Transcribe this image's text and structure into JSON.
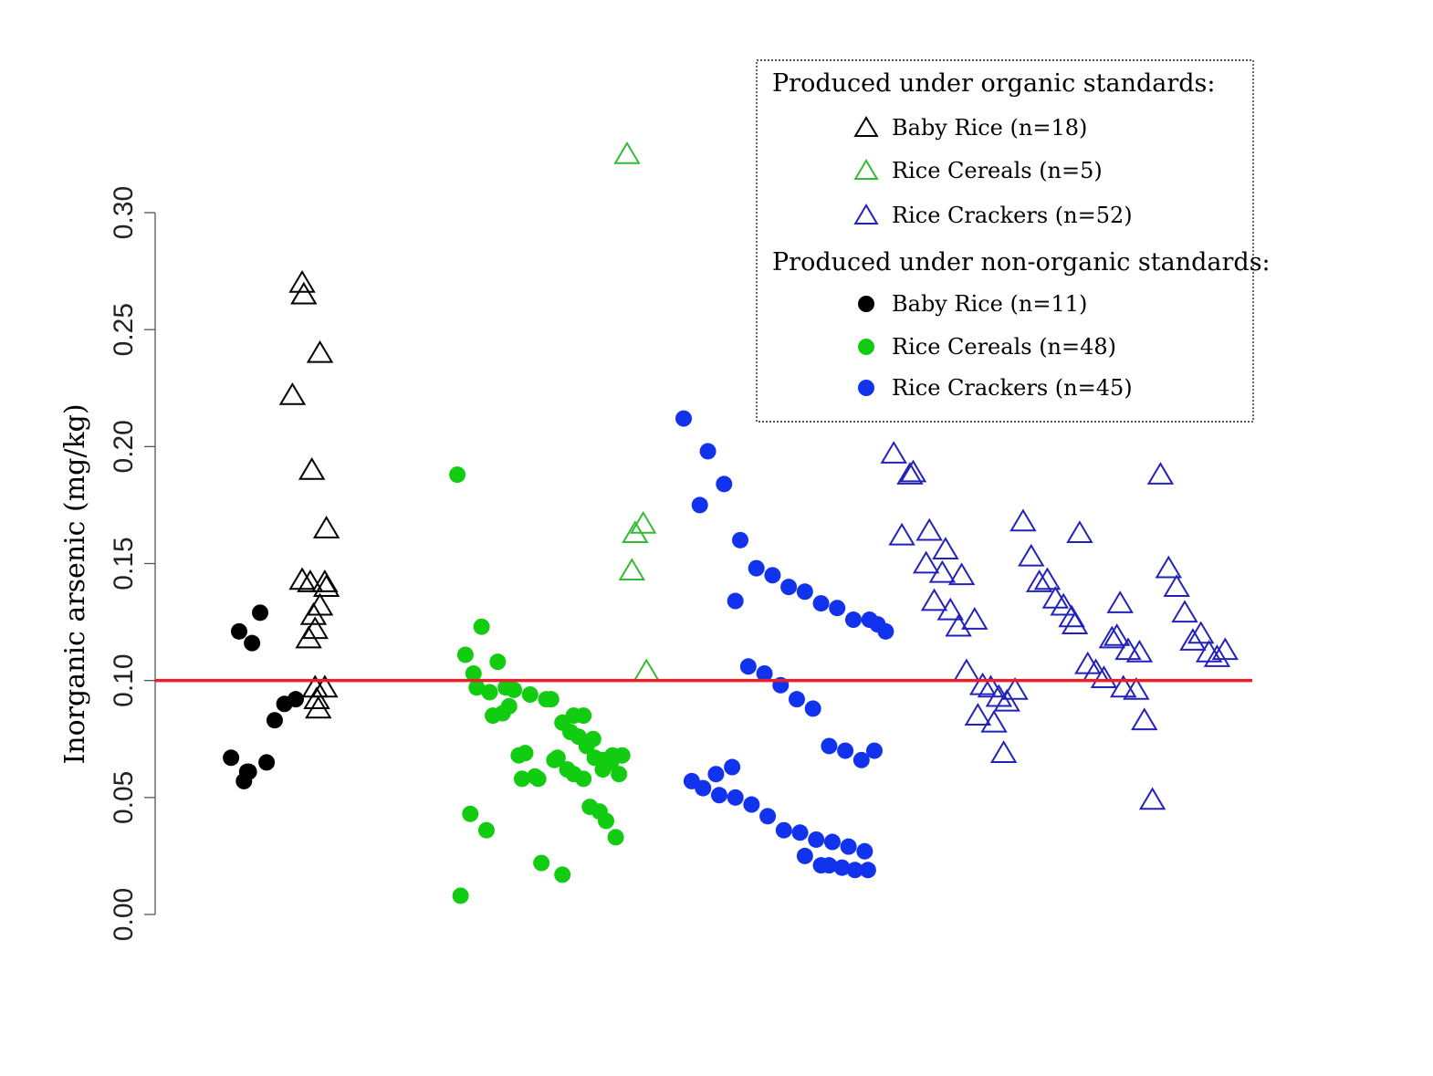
{
  "chart_data": {
    "type": "scatter",
    "ylabel": "Inorganic arsenic (mg/kg)",
    "ylim": [
      0.0,
      0.3
    ],
    "yticks": [
      "0.00",
      "0.05",
      "0.10",
      "0.15",
      "0.20",
      "0.25",
      "0.30"
    ],
    "reference_line": {
      "y": 0.1,
      "color": "#e8202a"
    },
    "legend": {
      "placement": "top-right",
      "organic_heading": "Produced under organic standards:",
      "nonorganic_heading": "Produced under non-organic standards:"
    },
    "series": [
      {
        "name": "Baby Rice (n=18)",
        "group": "organic",
        "marker": "triangle-open",
        "color": "#000000",
        "x": [
          1.44,
          1.45,
          1.38,
          1.5,
          1.55,
          1.59,
          1.44,
          1.49,
          1.58,
          1.59,
          1.51,
          1.52,
          1.48,
          1.55,
          1.52,
          1.53,
          1.54,
          1.58
        ],
        "y": [
          0.27,
          0.265,
          0.222,
          0.19,
          0.24,
          0.165,
          0.143,
          0.142,
          0.142,
          0.14,
          0.128,
          0.122,
          0.118,
          0.132,
          0.097,
          0.092,
          0.088,
          0.097
        ]
      },
      {
        "name": "Rice Cereals (n=5)",
        "group": "organic",
        "marker": "triangle-open",
        "color": "#33bb33",
        "x": [
          3.45,
          3.5,
          3.55,
          3.48,
          3.57
        ],
        "y": [
          0.325,
          0.163,
          0.167,
          0.147,
          0.104
        ]
      },
      {
        "name": "Rice Crackers (n=52)",
        "group": "organic",
        "marker": "triangle-open",
        "color": "#2222bb",
        "x": [
          5.1,
          5.2,
          5.15,
          5.3,
          5.4,
          5.35,
          5.45,
          5.5,
          5.6,
          5.55,
          5.65,
          5.7,
          5.75,
          5.8,
          5.85,
          5.78,
          5.9,
          5.95,
          6.0,
          6.05,
          6.1,
          6.15,
          6.2,
          6.22,
          6.3,
          6.35,
          6.4,
          6.45,
          6.48,
          6.55,
          6.6,
          6.65,
          6.7,
          6.75,
          6.8,
          6.85,
          6.9,
          6.95,
          7.0,
          7.05,
          7.1,
          7.15,
          5.22,
          5.32,
          5.42,
          5.52,
          5.62,
          5.72,
          6.25,
          6.5,
          6.52,
          6.62
        ],
        "y": [
          0.197,
          0.188,
          0.162,
          0.15,
          0.146,
          0.134,
          0.13,
          0.123,
          0.126,
          0.104,
          0.098,
          0.097,
          0.093,
          0.091,
          0.096,
          0.069,
          0.168,
          0.153,
          0.142,
          0.143,
          0.135,
          0.132,
          0.127,
          0.124,
          0.107,
          0.104,
          0.101,
          0.118,
          0.119,
          0.113,
          0.096,
          0.083,
          0.049,
          0.188,
          0.148,
          0.14,
          0.129,
          0.117,
          0.12,
          0.112,
          0.11,
          0.113,
          0.189,
          0.164,
          0.156,
          0.145,
          0.085,
          0.082,
          0.163,
          0.133,
          0.097,
          0.112
        ]
      },
      {
        "name": "Baby Rice (n=11)",
        "group": "non-organic",
        "marker": "circle-filled",
        "color": "#000000",
        "x": [
          1.05,
          1.13,
          1.18,
          1.27,
          1.33,
          1.4,
          1.1,
          1.0,
          1.08,
          1.11,
          1.22
        ],
        "y": [
          0.121,
          0.116,
          0.129,
          0.083,
          0.09,
          0.092,
          0.061,
          0.067,
          0.057,
          0.061,
          0.065
        ],
        "y_extra": []
      },
      {
        "name": "Rice Cereals (n=48)",
        "group": "non-organic",
        "marker": "circle-filled",
        "color": "#11cc11",
        "x": [
          2.4,
          2.55,
          2.45,
          2.65,
          2.75,
          2.7,
          2.85,
          2.95,
          2.98,
          3.05,
          3.1,
          3.15,
          3.2,
          3.25,
          3.3,
          3.35,
          3.4,
          3.12,
          2.9,
          2.8,
          2.5,
          2.52,
          2.6,
          2.62,
          2.68,
          2.72,
          2.78,
          2.82,
          2.88,
          3.0,
          3.02,
          3.08,
          3.18,
          3.22,
          3.28,
          3.32,
          3.38,
          2.58,
          2.48,
          2.42,
          2.92,
          3.05,
          3.12,
          3.18,
          3.24,
          3.3,
          3.36,
          3.42
        ],
        "y": [
          0.188,
          0.123,
          0.111,
          0.108,
          0.096,
          0.097,
          0.094,
          0.092,
          0.092,
          0.082,
          0.078,
          0.076,
          0.072,
          0.067,
          0.066,
          0.065,
          0.06,
          0.06,
          0.058,
          0.058,
          0.103,
          0.097,
          0.095,
          0.085,
          0.086,
          0.089,
          0.068,
          0.069,
          0.059,
          0.066,
          0.067,
          0.062,
          0.058,
          0.046,
          0.044,
          0.04,
          0.033,
          0.036,
          0.043,
          0.008,
          0.022,
          0.017,
          0.085,
          0.085,
          0.075,
          0.062,
          0.068,
          0.068
        ],
        "y_extra": []
      },
      {
        "name": "Rice Crackers (n=45)",
        "group": "non-organic",
        "marker": "circle-filled",
        "color": "#1133ee",
        "x": [
          3.8,
          3.95,
          3.9,
          4.05,
          4.15,
          4.25,
          4.35,
          4.45,
          4.55,
          4.65,
          4.75,
          4.85,
          4.95,
          5.0,
          5.05,
          4.2,
          4.3,
          4.4,
          4.5,
          4.6,
          4.7,
          4.8,
          4.9,
          4.98,
          4.1,
          4.0,
          3.85,
          3.92,
          4.02,
          4.12,
          4.22,
          4.32,
          4.42,
          4.52,
          4.62,
          4.72,
          4.82,
          4.92,
          4.55,
          4.65,
          4.7,
          4.78,
          4.86,
          4.94,
          4.12
        ],
        "y": [
          0.212,
          0.198,
          0.175,
          0.184,
          0.16,
          0.148,
          0.145,
          0.14,
          0.138,
          0.133,
          0.131,
          0.126,
          0.126,
          0.124,
          0.121,
          0.106,
          0.103,
          0.098,
          0.092,
          0.088,
          0.072,
          0.07,
          0.066,
          0.07,
          0.063,
          0.06,
          0.057,
          0.054,
          0.051,
          0.05,
          0.047,
          0.042,
          0.036,
          0.035,
          0.032,
          0.031,
          0.029,
          0.027,
          0.025,
          0.021,
          0.021,
          0.02,
          0.019,
          0.019,
          0.134
        ],
        "y_extra": []
      }
    ],
    "grid": false
  }
}
